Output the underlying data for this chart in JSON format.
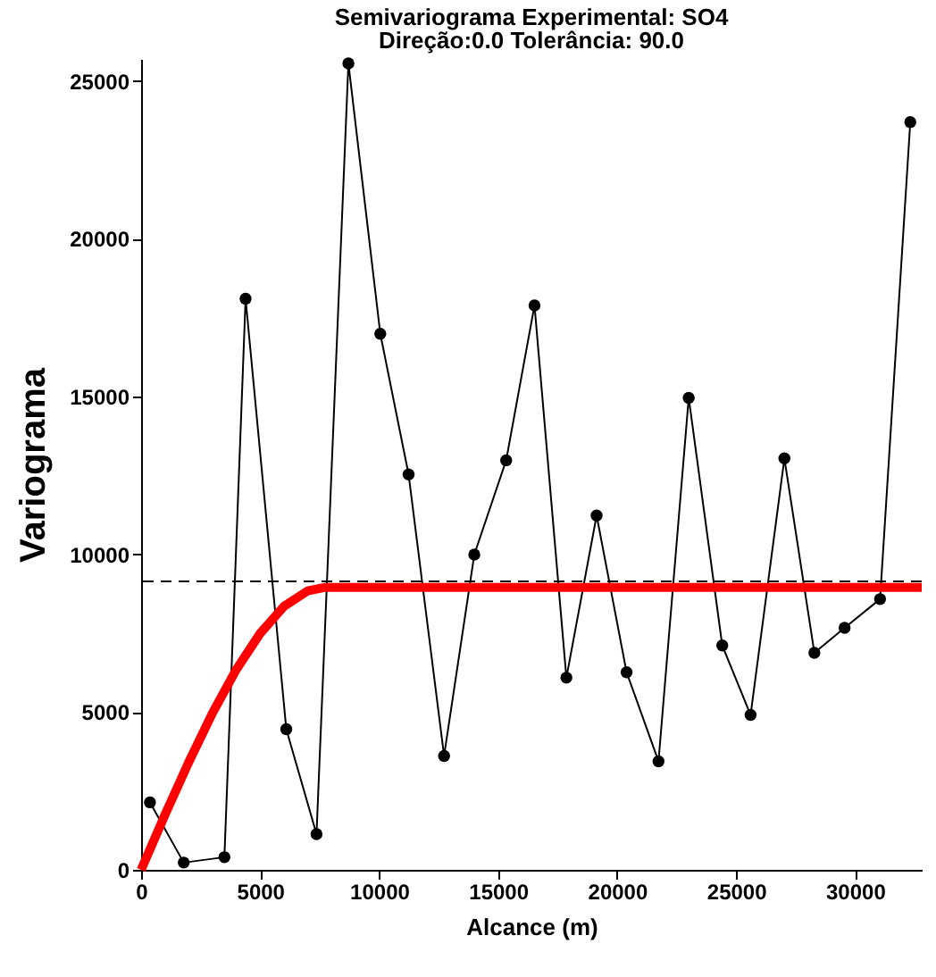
{
  "chart_data": {
    "type": "line",
    "title": "Semivariograma Experimental:  SO4",
    "subtitle": "Direção:0.0   Tolerância: 90.0",
    "xlabel": "Alcance (m)",
    "ylabel": "Variograma",
    "xlim": [
      0,
      32800
    ],
    "ylim": [
      0,
      25700
    ],
    "xticks": [
      0,
      5000,
      10000,
      15000,
      20000,
      25000,
      30000
    ],
    "yticks": [
      0,
      5000,
      10000,
      15000,
      20000,
      25000
    ],
    "grid": false,
    "series": [
      {
        "color": "#000000",
        "marker": "circle",
        "x": [
          372,
          1790,
          3500,
          4390,
          6100,
          7370,
          8710,
          10050,
          11240,
          12730,
          14000,
          15340,
          16530,
          17870,
          19140,
          20400,
          21740,
          23010,
          24420,
          25610,
          27030,
          28290,
          29560,
          31050,
          32320
        ],
        "values": [
          2140,
          230,
          400,
          18100,
          4460,
          1130,
          25560,
          16990,
          12530,
          3610,
          9990,
          12980,
          17890,
          6090,
          11230,
          6260,
          3440,
          14960,
          7110,
          4910,
          13040,
          6880,
          7670,
          8580,
          23700
        ]
      },
      {
        "color": "#ff0000",
        "marker": "none",
        "x": [
          0,
          1000,
          2000,
          3000,
          4000,
          5000,
          6000,
          7000,
          7700,
          32800
        ],
        "values": [
          0,
          1740,
          3410,
          4970,
          6350,
          7490,
          8350,
          8840,
          8950,
          8950
        ]
      }
    ],
    "ref_lines": [
      {
        "axis": "y",
        "value": 9140,
        "color": "#000000",
        "line_style": "dashed"
      }
    ]
  }
}
